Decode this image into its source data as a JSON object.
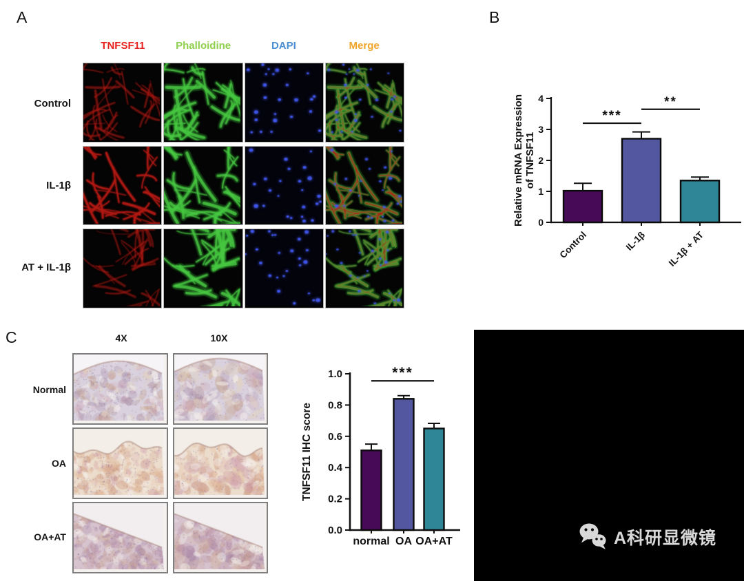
{
  "panel_a": {
    "label": "A",
    "channels": [
      {
        "label": "TNFSF11",
        "color": "#e8231d"
      },
      {
        "label": "Phalloidine",
        "color": "#8ed04e"
      },
      {
        "label": "DAPI",
        "color": "#4a8fd3"
      },
      {
        "label": "Merge",
        "color": "#f0a428"
      }
    ],
    "rows": [
      {
        "label": "Control"
      },
      {
        "label": "IL-1β"
      },
      {
        "label": "AT + IL-1β"
      }
    ]
  },
  "panel_b": {
    "label": "B"
  },
  "panel_c": {
    "label": "C",
    "magnifications": [
      "4X",
      "10X"
    ],
    "rows": [
      {
        "label": "Normal"
      },
      {
        "label": "OA"
      },
      {
        "label": "OA+AT"
      }
    ]
  },
  "watermark": {
    "text": "A科研显微镜",
    "icon": "wechat-icon"
  },
  "chart_data": [
    {
      "id": "B",
      "type": "bar",
      "categories": [
        "Control",
        "IL-1β",
        "IL-1β + AT"
      ],
      "values": [
        1.02,
        2.7,
        1.35
      ],
      "errors": [
        0.24,
        0.22,
        0.11
      ],
      "bar_colors": [
        "#470a56",
        "#53579f",
        "#2f8697"
      ],
      "ylabel": "Relative mRNA Expression of TNFSF11",
      "ylabel_lines": [
        "Relative  mRNA Expression",
        "of TNFSF11"
      ],
      "ylim": [
        0,
        4
      ],
      "yticks": [
        0,
        1,
        2,
        3,
        4
      ],
      "significance": [
        {
          "label": "***",
          "from": 0,
          "to": 1,
          "y": 3.2
        },
        {
          "label": "**",
          "from": 1,
          "to": 2,
          "y": 3.65
        }
      ],
      "xtick_rotation": -45,
      "grid": false
    },
    {
      "id": "C",
      "type": "bar",
      "categories": [
        "normal",
        "OA",
        "OA+AT"
      ],
      "values": [
        0.51,
        0.84,
        0.65
      ],
      "errors": [
        0.04,
        0.02,
        0.033
      ],
      "bar_colors": [
        "#470a56",
        "#53579f",
        "#2f8697"
      ],
      "ylabel": "TNFSF11 IHC score",
      "ylim": [
        0,
        1
      ],
      "yticks": [
        0,
        0.2,
        0.4,
        0.6,
        0.8,
        1
      ],
      "ytick_labels": [
        "0.0",
        "0.2",
        "0.4",
        "0.6",
        "0.8",
        "1.0"
      ],
      "significance": [
        {
          "label": "***",
          "from": 0,
          "to": 2,
          "y": 0.955
        }
      ],
      "xtick_rotation": 0,
      "grid": false
    }
  ]
}
